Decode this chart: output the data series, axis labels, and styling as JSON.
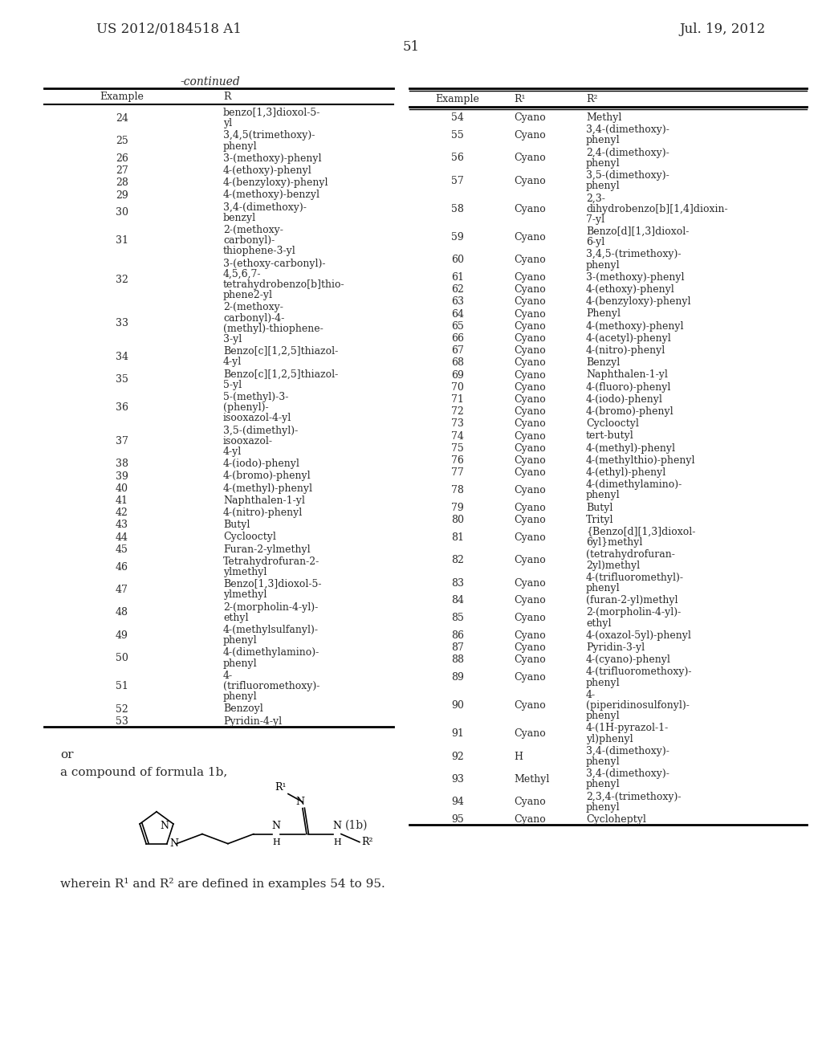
{
  "patent_number": "US 2012/0184518 A1",
  "date": "Jul. 19, 2012",
  "page_number": "51",
  "continued_label": "-continued",
  "left_table": {
    "headers": [
      "Example",
      "R"
    ],
    "rows": [
      [
        "24",
        "benzo[1,3]dioxol-5-\nyl"
      ],
      [
        "25",
        "3,4,5(trimethoxy)-\nphenyl"
      ],
      [
        "26",
        "3-(methoxy)-phenyl"
      ],
      [
        "27",
        "4-(ethoxy)-phenyl"
      ],
      [
        "28",
        "4-(benzyloxy)-phenyl"
      ],
      [
        "29",
        "4-(methoxy)-benzyl"
      ],
      [
        "30",
        "3,4-(dimethoxy)-\nbenzyl"
      ],
      [
        "31",
        "2-(methoxy-\ncarbonyl)-\nthiophene-3-yl"
      ],
      [
        "32",
        "3-(ethoxy-carbonyl)-\n4,5,6,7-\ntetrahydrobenzo[b]thio-\nphene2-yl"
      ],
      [
        "33",
        "2-(methoxy-\ncarbonyl)-4-\n(methyl)-thiophene-\n3-yl"
      ],
      [
        "34",
        "Benzo[c][1,2,5]thiazol-\n4-yl"
      ],
      [
        "35",
        "Benzo[c][1,2,5]thiazol-\n5-yl"
      ],
      [
        "36",
        "5-(methyl)-3-\n(phenyl)-\nisooxazol-4-yl"
      ],
      [
        "37",
        "3,5-(dimethyl)-\nisooxazol-\n4-yl"
      ],
      [
        "38",
        "4-(iodo)-phenyl"
      ],
      [
        "39",
        "4-(bromo)-phenyl"
      ],
      [
        "40",
        "4-(methyl)-phenyl"
      ],
      [
        "41",
        "Naphthalen-1-yl"
      ],
      [
        "42",
        "4-(nitro)-phenyl"
      ],
      [
        "43",
        "Butyl"
      ],
      [
        "44",
        "Cyclooctyl"
      ],
      [
        "45",
        "Furan-2-ylmethyl"
      ],
      [
        "46",
        "Tetrahydrofuran-2-\nylmethyl"
      ],
      [
        "47",
        "Benzo[1,3]dioxol-5-\nylmethyl"
      ],
      [
        "48",
        "2-(morpholin-4-yl)-\nethyl"
      ],
      [
        "49",
        "4-(methylsulfanyl)-\nphenyl"
      ],
      [
        "50",
        "4-(dimethylamino)-\nphenyl"
      ],
      [
        "51",
        "4-\n(trifluoromethoxy)-\nphenyl"
      ],
      [
        "52",
        "Benzoyl"
      ],
      [
        "53",
        "Pyridin-4-yl"
      ]
    ]
  },
  "right_table": {
    "headers": [
      "Example",
      "R¹",
      "R²"
    ],
    "rows": [
      [
        "54",
        "Cyano",
        "Methyl"
      ],
      [
        "55",
        "Cyano",
        "3,4-(dimethoxy)-\nphenyl"
      ],
      [
        "56",
        "Cyano",
        "2,4-(dimethoxy)-\nphenyl"
      ],
      [
        "57",
        "Cyano",
        "3,5-(dimethoxy)-\nphenyl"
      ],
      [
        "58",
        "Cyano",
        "2,3-\ndihydrobenzo[b][1,4]dioxin-\n7-yl"
      ],
      [
        "59",
        "Cyano",
        "Benzo[d][1,3]dioxol-\n6-yl"
      ],
      [
        "60",
        "Cyano",
        "3,4,5-(trimethoxy)-\nphenyl"
      ],
      [
        "61",
        "Cyano",
        "3-(methoxy)-phenyl"
      ],
      [
        "62",
        "Cyano",
        "4-(ethoxy)-phenyl"
      ],
      [
        "63",
        "Cyano",
        "4-(benzyloxy)-phenyl"
      ],
      [
        "64",
        "Cyano",
        "Phenyl"
      ],
      [
        "65",
        "Cyano",
        "4-(methoxy)-phenyl"
      ],
      [
        "66",
        "Cyano",
        "4-(acetyl)-phenyl"
      ],
      [
        "67",
        "Cyano",
        "4-(nitro)-phenyl"
      ],
      [
        "68",
        "Cyano",
        "Benzyl"
      ],
      [
        "69",
        "Cyano",
        "Naphthalen-1-yl"
      ],
      [
        "70",
        "Cyano",
        "4-(fluoro)-phenyl"
      ],
      [
        "71",
        "Cyano",
        "4-(iodo)-phenyl"
      ],
      [
        "72",
        "Cyano",
        "4-(bromo)-phenyl"
      ],
      [
        "73",
        "Cyano",
        "Cyclooctyl"
      ],
      [
        "74",
        "Cyano",
        "tert-butyl"
      ],
      [
        "75",
        "Cyano",
        "4-(methyl)-phenyl"
      ],
      [
        "76",
        "Cyano",
        "4-(methylthio)-phenyl"
      ],
      [
        "77",
        "Cyano",
        "4-(ethyl)-phenyl"
      ],
      [
        "78",
        "Cyano",
        "4-(dimethylamino)-\nphenyl"
      ],
      [
        "79",
        "Cyano",
        "Butyl"
      ],
      [
        "80",
        "Cyano",
        "Trityl"
      ],
      [
        "81",
        "Cyano",
        "{Benzo[d][1,3]dioxol-\n6yl}methyl"
      ],
      [
        "82",
        "Cyano",
        "(tetrahydrofuran-\n2yl)methyl"
      ],
      [
        "83",
        "Cyano",
        "4-(trifluoromethyl)-\nphenyl"
      ],
      [
        "84",
        "Cyano",
        "(furan-2-yl)methyl"
      ],
      [
        "85",
        "Cyano",
        "2-(morpholin-4-yl)-\nethyl"
      ],
      [
        "86",
        "Cyano",
        "4-(oxazol-5yl)-phenyl"
      ],
      [
        "87",
        "Cyano",
        "Pyridin-3-yl"
      ],
      [
        "88",
        "Cyano",
        "4-(cyano)-phenyl"
      ],
      [
        "89",
        "Cyano",
        "4-(trifluoromethoxy)-\nphenyl"
      ],
      [
        "90",
        "Cyano",
        "4-\n(piperidinosulfonyl)-\nphenyl"
      ],
      [
        "91",
        "Cyano",
        "4-(1H-pyrazol-1-\nyl)phenyl"
      ],
      [
        "92",
        "H",
        "3,4-(dimethoxy)-\nphenyl"
      ],
      [
        "93",
        "Methyl",
        "3,4-(dimethoxy)-\nphenyl"
      ],
      [
        "94",
        "Cyano",
        "2,3,4-(trimethoxy)-\nphenyl"
      ],
      [
        "95",
        "Cyano",
        "Cycloheptyl"
      ]
    ]
  },
  "formula_label": "(1b)",
  "or_text": "or",
  "compound_text": "a compound of formula 1b,",
  "wherein_text": "wherein R¹ and R² are defined in examples 54 to 95.",
  "bg_color": "#ffffff",
  "text_color": "#2a2a2a",
  "line_color": "#000000",
  "font_size_header": 11,
  "font_size_body": 9,
  "font_size_page": 12
}
